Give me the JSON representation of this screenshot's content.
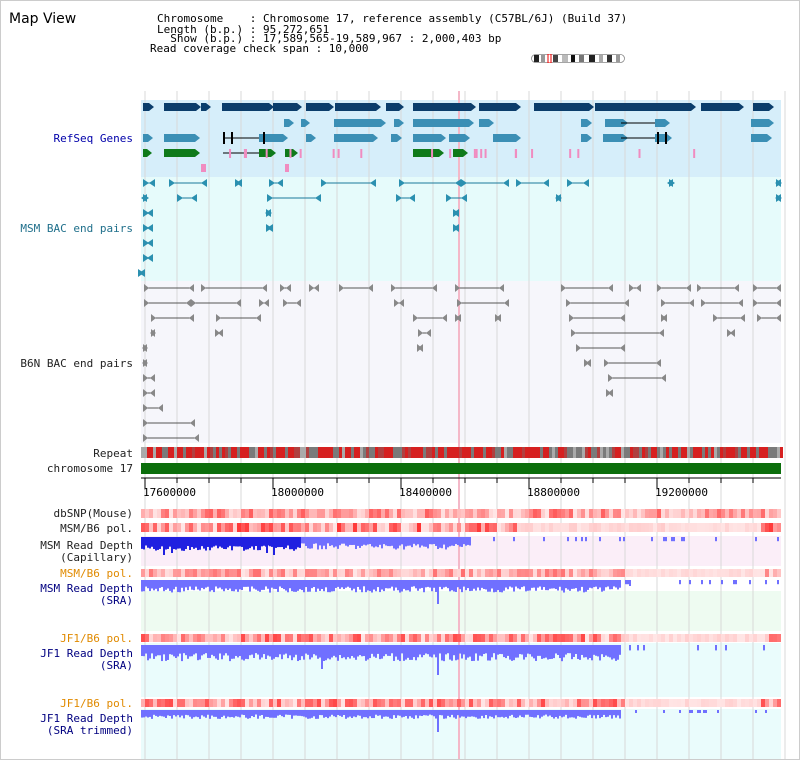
{
  "header": {
    "title": "Map View",
    "info_lines": [
      "Chromosome    : Chromosome 17, reference assembly (C57BL/6J) (Build 37)",
      "Length (b.p.) : 95,272,651",
      "  Show (b.p.) : 17,589,565-19,589,967 : 2,000,403 bp",
      "Read coverage check span : 10,000"
    ]
  },
  "tracks": {
    "refseq": "RefSeq Genes",
    "msm_bac": "MSM BAC end pairs",
    "b6n_bac": "B6N BAC end pairs",
    "repeat": "Repeat",
    "chromosome": "chromosome 17",
    "dbsnp": "dbSNP(Mouse)",
    "msm_b6_pol": "MSM/B6 pol.",
    "msm_depth_cap_1": "MSM Read Depth",
    "msm_depth_cap_2": "(Capillary)",
    "msm_b6_pol_2": "MSM/B6 pol.",
    "msm_depth_sra_1": "MSM Read Depth",
    "msm_depth_sra_2": "(SRA)",
    "jf1_b6_pol": "JF1/B6 pol.",
    "jf1_depth_sra_1": "JF1 Read Depth",
    "jf1_depth_sra_2": "(SRA)",
    "jf1_b6_pol_2": "JF1/B6 pol.",
    "jf1_depth_trim_1": "JF1 Read Depth",
    "jf1_depth_trim_2": "(SRA trimmed)"
  },
  "axis": {
    "ticks": [
      "17600000",
      "18000000",
      "18400000",
      "18800000",
      "19200000"
    ]
  },
  "colors": {
    "refseq_bg": "#d6eefa",
    "bac_bg": "#e6fbfb",
    "gene_dark": "#0b3d6b",
    "gene_mid": "#3b8fb5",
    "gene_green": "#0f7a1a",
    "chrom_green": "#0b6e0b",
    "depth_blue": "#7070ff",
    "depth_dark": "#2020e0",
    "pol_red": "#ee3333",
    "pink_bg": "#fbeef8",
    "mint_bg": "#eefbf1",
    "cyan_bg": "#eafcfc"
  }
}
